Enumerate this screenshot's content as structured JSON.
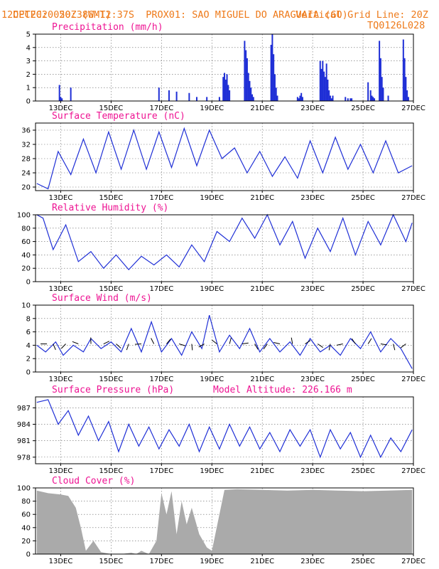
{
  "header": {
    "line1_left": "CPTEC:",
    "coords": "050:38W-12:37S",
    "location": "PROX01: SAO MIGUEL DO ARAGUAIA (GO)",
    "date": "12DEC2020 20Z (GMT)",
    "grid_note": "Vertical Grid Line: 20Z",
    "code": "TQ0126L028"
  },
  "colors": {
    "header": "#ee7a1a",
    "title": "#ee1493",
    "series": "#1f2fd6",
    "cloud": "#aaaaaa"
  },
  "x_ticks": [
    "13DEC",
    "15DEC",
    "17DEC",
    "19DEC",
    "21DEC",
    "23DEC",
    "25DEC",
    "27DEC"
  ],
  "chart_data": [
    {
      "type": "bar",
      "title": "Precipitation (mm/h)",
      "ylim": [
        0,
        5
      ],
      "yticks": [
        "0",
        "1",
        "2",
        "3",
        "4",
        "5"
      ],
      "grid": true,
      "x": [
        12.95,
        13.0,
        13.05,
        13.4,
        16.9,
        17.3,
        17.6,
        18.1,
        18.4,
        18.8,
        19.3,
        19.45,
        19.5,
        19.55,
        19.6,
        19.65,
        19.7,
        20.3,
        20.35,
        20.4,
        20.45,
        20.5,
        20.55,
        20.6,
        20.65,
        21.35,
        21.4,
        21.45,
        21.5,
        21.55,
        21.6,
        22.4,
        22.45,
        22.5,
        22.55,
        22.6,
        23.3,
        23.35,
        23.4,
        23.45,
        23.5,
        23.55,
        23.6,
        23.65,
        23.7,
        23.75,
        23.8,
        24.3,
        24.4,
        24.5,
        24.55,
        25.2,
        25.3,
        25.35,
        25.4,
        25.45,
        25.65,
        25.7,
        25.75,
        25.8,
        26.0,
        26.6,
        26.65,
        26.7,
        26.75,
        26.8
      ],
      "values": [
        1.2,
        0.3,
        0.2,
        1.0,
        1.0,
        0.8,
        0.7,
        0.6,
        0.3,
        0.3,
        0.3,
        1.8,
        2.1,
        1.6,
        2.0,
        1.2,
        0.8,
        4.5,
        3.8,
        3.2,
        2.1,
        1.5,
        1.0,
        0.5,
        0.3,
        4.2,
        5.0,
        3.5,
        2.0,
        1.0,
        0.4,
        0.3,
        0.2,
        0.4,
        0.6,
        0.3,
        3.0,
        2.4,
        3.0,
        2.2,
        1.8,
        2.8,
        1.6,
        0.8,
        0.4,
        0.2,
        0.4,
        0.3,
        0.2,
        0.2,
        0.2,
        1.4,
        0.8,
        0.4,
        0.3,
        0.2,
        4.5,
        3.2,
        1.8,
        1.0,
        0.4,
        4.6,
        3.2,
        1.8,
        0.8,
        0.3
      ]
    },
    {
      "type": "line",
      "title": "Surface Temperature (nC)",
      "ylim": [
        19,
        38
      ],
      "yticks": [
        "20",
        "24",
        "28",
        "32",
        "36"
      ],
      "ytick_values": [
        20,
        24,
        28,
        32,
        36
      ],
      "grid": true,
      "x": [
        12.05,
        12.5,
        12.9,
        13.4,
        13.9,
        14.4,
        14.9,
        15.4,
        15.9,
        16.4,
        16.9,
        17.4,
        17.9,
        18.4,
        18.9,
        19.4,
        19.9,
        20.4,
        20.9,
        21.4,
        21.9,
        22.4,
        22.9,
        23.4,
        23.9,
        24.4,
        24.9,
        25.4,
        25.9,
        26.4,
        26.95
      ],
      "y": [
        21,
        19.5,
        30,
        23.5,
        33.5,
        24,
        35.5,
        25,
        36,
        25,
        35.5,
        25.5,
        36.5,
        26,
        36,
        28,
        31,
        24,
        30,
        23,
        28.5,
        22.5,
        33,
        24,
        34,
        25,
        32,
        24,
        33,
        24,
        26
      ]
    },
    {
      "type": "line",
      "title": "Relative Humidity (%)",
      "ylim": [
        0,
        100
      ],
      "yticks": [
        "0",
        "20",
        "40",
        "60",
        "80",
        "100"
      ],
      "ytick_values": [
        0,
        20,
        40,
        60,
        80,
        100
      ],
      "grid": true,
      "x": [
        12.05,
        12.3,
        12.7,
        13.2,
        13.7,
        14.2,
        14.7,
        15.2,
        15.7,
        16.2,
        16.7,
        17.2,
        17.7,
        18.2,
        18.7,
        19.2,
        19.7,
        20.2,
        20.7,
        21.2,
        21.7,
        22.2,
        22.7,
        23.2,
        23.7,
        24.2,
        24.7,
        25.2,
        25.7,
        26.2,
        26.7,
        26.95
      ],
      "y": [
        100,
        95,
        48,
        85,
        30,
        45,
        20,
        40,
        18,
        38,
        25,
        40,
        22,
        55,
        30,
        75,
        60,
        95,
        65,
        100,
        55,
        90,
        35,
        80,
        45,
        95,
        40,
        90,
        55,
        100,
        60,
        88
      ]
    },
    {
      "type": "line",
      "title": "Surface Wind (m/s)",
      "ylim": [
        0,
        10
      ],
      "yticks": [
        "0",
        "2",
        "4",
        "6",
        "8",
        "10"
      ],
      "ytick_values": [
        0,
        2,
        4,
        6,
        8,
        10
      ],
      "grid": true,
      "x": [
        12.05,
        12.4,
        12.8,
        13.1,
        13.5,
        13.9,
        14.2,
        14.6,
        15.0,
        15.4,
        15.8,
        16.2,
        16.6,
        17.0,
        17.4,
        17.8,
        18.2,
        18.6,
        18.9,
        19.3,
        19.7,
        20.1,
        20.5,
        20.9,
        21.3,
        21.7,
        22.1,
        22.5,
        22.9,
        23.3,
        23.7,
        24.1,
        24.5,
        24.9,
        25.3,
        25.7,
        26.1,
        26.5,
        26.95
      ],
      "y": [
        4,
        3,
        4.5,
        2.5,
        4,
        3,
        5,
        3.5,
        4.5,
        3,
        6.5,
        3,
        7.5,
        3,
        5,
        2.5,
        6,
        3.5,
        8.5,
        3,
        5.5,
        3.5,
        6.5,
        3,
        5,
        3,
        4.5,
        2.5,
        5,
        3,
        4,
        2.5,
        5,
        3.5,
        6,
        3,
        5,
        3.5,
        0.5
      ]
    },
    {
      "type": "line",
      "title": "Surface Pressure (hPa)",
      "annotation": "Model Altitude: 226.166 m",
      "ylim": [
        976.8,
        989
      ],
      "yticks": [
        "978",
        "981",
        "984",
        "987"
      ],
      "ytick_values": [
        978,
        981,
        984,
        987
      ],
      "grid": true,
      "x": [
        12.05,
        12.5,
        12.9,
        13.3,
        13.7,
        14.1,
        14.5,
        14.9,
        15.3,
        15.7,
        16.1,
        16.5,
        16.9,
        17.3,
        17.7,
        18.1,
        18.5,
        18.9,
        19.3,
        19.7,
        20.1,
        20.5,
        20.9,
        21.3,
        21.7,
        22.1,
        22.5,
        22.9,
        23.3,
        23.7,
        24.1,
        24.5,
        24.9,
        25.3,
        25.7,
        26.1,
        26.5,
        26.95
      ],
      "y": [
        988,
        988.5,
        984,
        986.5,
        982,
        985.5,
        981,
        984.5,
        979,
        984,
        980,
        983.5,
        979.5,
        983,
        980,
        984,
        979,
        983.5,
        979.5,
        984,
        980,
        983.5,
        979.5,
        982.5,
        979,
        983,
        980,
        983,
        978,
        983,
        979.5,
        982.5,
        978,
        982,
        978,
        981.5,
        979,
        983
      ]
    },
    {
      "type": "area",
      "title": "Cloud Cover (%)",
      "ylim": [
        0,
        100
      ],
      "yticks": [
        "0",
        "20",
        "40",
        "60",
        "80",
        "100"
      ],
      "ytick_values": [
        0,
        20,
        40,
        60,
        80,
        100
      ],
      "grid": true,
      "x": [
        12.05,
        12.5,
        13.0,
        13.3,
        13.6,
        13.8,
        14.0,
        14.3,
        14.6,
        15.0,
        15.4,
        15.8,
        16.0,
        16.2,
        16.5,
        16.8,
        17.0,
        17.2,
        17.4,
        17.6,
        17.8,
        18.0,
        18.2,
        18.5,
        18.8,
        19.0,
        19.5,
        20.0,
        21.0,
        22.0,
        23.0,
        24.0,
        25.0,
        26.0,
        26.95
      ],
      "y": [
        96,
        92,
        90,
        88,
        70,
        40,
        5,
        20,
        3,
        0,
        0,
        2,
        0,
        5,
        0,
        20,
        92,
        60,
        95,
        30,
        80,
        45,
        70,
        30,
        10,
        5,
        97,
        98,
        97,
        96,
        97,
        96,
        95,
        96,
        97
      ]
    }
  ]
}
